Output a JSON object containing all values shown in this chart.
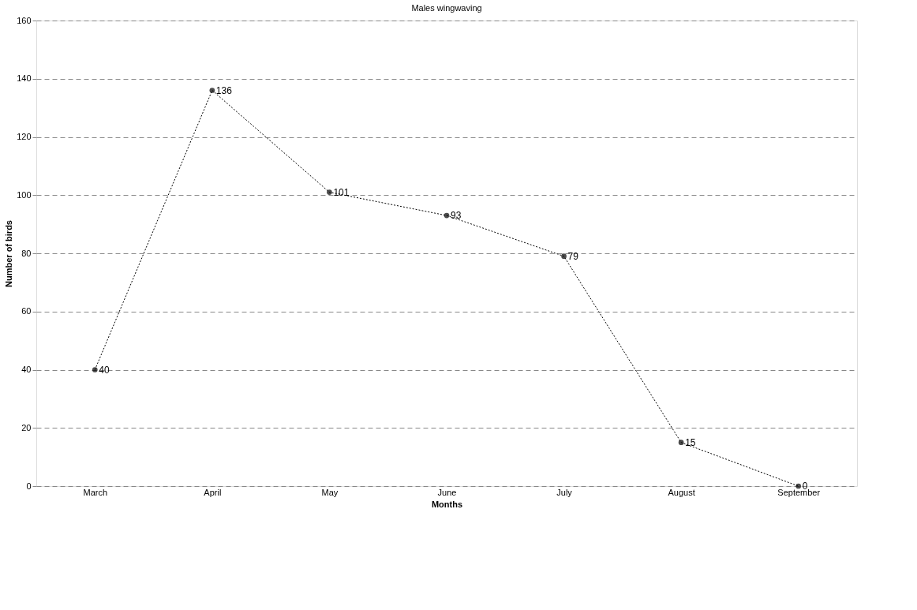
{
  "chart_data": {
    "type": "line",
    "title": "Males wingwaving",
    "xlabel": "Months",
    "ylabel": "Number of birds",
    "categories": [
      "March",
      "April",
      "May",
      "June",
      "July",
      "August",
      "September"
    ],
    "series": [
      {
        "color": "#000000",
        "values": [
          40,
          136,
          101,
          93,
          79,
          15,
          0
        ]
      }
    ],
    "ylim": [
      0,
      160
    ],
    "yticks": [
      0,
      20,
      40,
      60,
      80,
      100,
      120,
      140,
      160
    ],
    "grid": "y",
    "marker": "circle",
    "line_style": "dotted",
    "data_labels": true
  }
}
